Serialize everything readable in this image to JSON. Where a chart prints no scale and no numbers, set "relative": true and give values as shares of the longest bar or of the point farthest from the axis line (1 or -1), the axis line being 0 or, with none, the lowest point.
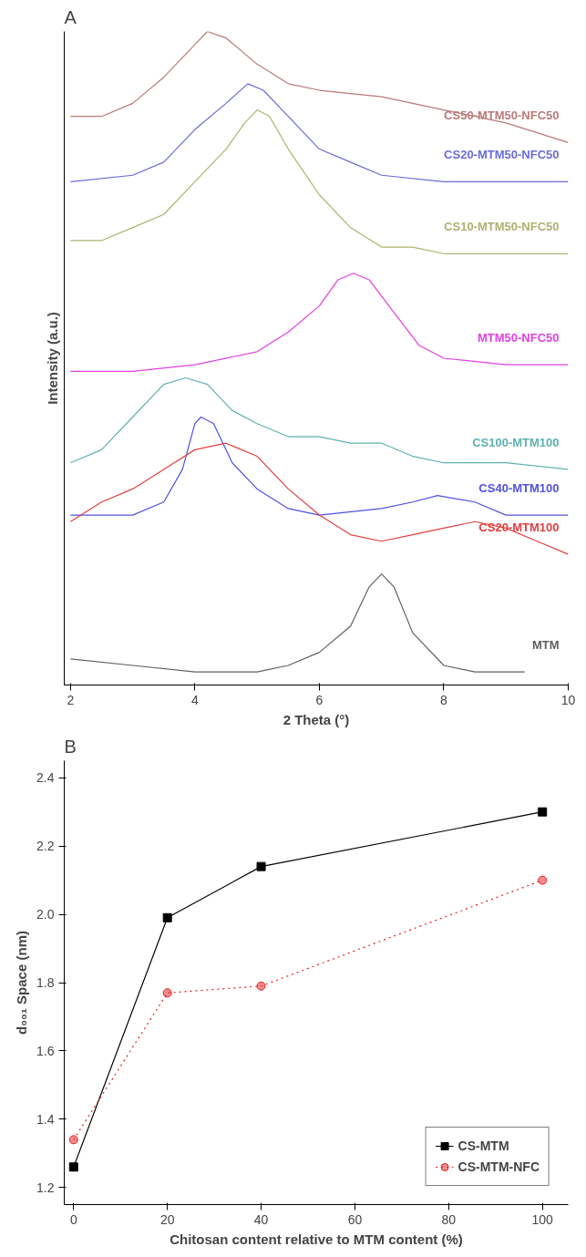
{
  "chart_data": [
    {
      "type": "line",
      "title": "A",
      "xlabel": "2 Theta (°)",
      "ylabel": "Intensity (a.u.)",
      "relative": true,
      "xlim": [
        1.9,
        10
      ],
      "xticks": [
        2,
        4,
        6,
        8,
        10
      ],
      "tick_labels": "x",
      "legend": false,
      "grid": false,
      "marker": "none",
      "series": [
        {
          "name": "CS50-MTM50-NFC50",
          "color": "#b87a7a",
          "x": [
            2,
            2.5,
            3,
            3.5,
            4,
            4.2,
            4.5,
            5,
            5.5,
            6,
            7,
            8,
            9,
            10
          ],
          "values": [
            0.87,
            0.87,
            0.89,
            0.93,
            0.98,
            1.0,
            0.99,
            0.95,
            0.92,
            0.91,
            0.9,
            0.88,
            0.86,
            0.83
          ]
        },
        {
          "name": "CS20-MTM50-NFC50",
          "color": "#6a6ad8",
          "x": [
            2,
            3,
            3.5,
            4,
            4.5,
            4.85,
            5.1,
            5.5,
            6,
            6.5,
            7,
            8,
            9,
            10
          ],
          "values": [
            0.77,
            0.78,
            0.8,
            0.85,
            0.89,
            0.92,
            0.91,
            0.87,
            0.82,
            0.8,
            0.78,
            0.77,
            0.77,
            0.77
          ]
        },
        {
          "name": "CS10-MTM50-NFC50",
          "color": "#b0b070",
          "x": [
            2,
            2.5,
            3,
            3.5,
            4,
            4.5,
            4.8,
            5.0,
            5.2,
            5.5,
            6,
            6.5,
            7,
            7.5,
            8,
            10
          ],
          "values": [
            0.68,
            0.68,
            0.7,
            0.72,
            0.77,
            0.82,
            0.86,
            0.88,
            0.87,
            0.82,
            0.75,
            0.7,
            0.67,
            0.67,
            0.66,
            0.66
          ]
        },
        {
          "name": "MTM50-NFC50",
          "color": "#e040e0",
          "x": [
            2,
            3,
            4,
            5,
            5.5,
            6,
            6.3,
            6.55,
            6.8,
            7.2,
            7.6,
            8,
            9,
            10
          ],
          "values": [
            0.48,
            0.48,
            0.49,
            0.51,
            0.54,
            0.58,
            0.62,
            0.63,
            0.62,
            0.57,
            0.52,
            0.5,
            0.49,
            0.49
          ]
        },
        {
          "name": "CS100-MTM100",
          "color": "#60b0b0",
          "x": [
            2,
            2.5,
            3,
            3.5,
            3.85,
            4.2,
            4.6,
            5,
            5.5,
            6,
            6.5,
            7,
            7.5,
            8,
            9,
            10
          ],
          "values": [
            0.34,
            0.36,
            0.41,
            0.46,
            0.47,
            0.46,
            0.42,
            0.4,
            0.38,
            0.38,
            0.37,
            0.37,
            0.35,
            0.34,
            0.34,
            0.33
          ]
        },
        {
          "name": "CS40-MTM100",
          "color": "#5050e0",
          "x": [
            2,
            3,
            3.5,
            3.8,
            4.0,
            4.1,
            4.3,
            4.6,
            5,
            5.5,
            6,
            7,
            7.5,
            7.9,
            8.5,
            9,
            10
          ],
          "values": [
            0.26,
            0.26,
            0.28,
            0.33,
            0.4,
            0.41,
            0.4,
            0.34,
            0.3,
            0.27,
            0.26,
            0.27,
            0.28,
            0.29,
            0.28,
            0.26,
            0.26
          ]
        },
        {
          "name": "CS20-MTM100",
          "color": "#e04040",
          "x": [
            2,
            2.5,
            3,
            3.5,
            4,
            4.5,
            5,
            5.5,
            6,
            6.5,
            7,
            7.5,
            8,
            8.5,
            9,
            9.5,
            10
          ],
          "values": [
            0.25,
            0.28,
            0.3,
            0.33,
            0.36,
            0.37,
            0.35,
            0.3,
            0.26,
            0.23,
            0.22,
            0.23,
            0.24,
            0.25,
            0.24,
            0.22,
            0.2
          ]
        },
        {
          "name": "MTM",
          "color": "#606060",
          "x": [
            2,
            3,
            4,
            5,
            5.5,
            6,
            6.5,
            6.8,
            7.0,
            7.2,
            7.5,
            8,
            8.5,
            9,
            9.3
          ],
          "values": [
            0.04,
            0.03,
            0.02,
            0.02,
            0.03,
            0.05,
            0.09,
            0.15,
            0.17,
            0.15,
            0.08,
            0.03,
            0.02,
            0.02,
            0.02
          ]
        }
      ]
    },
    {
      "type": "line",
      "title": "B",
      "xlabel": "Chitosan content relative to MTM content (%)",
      "ylabel": "d₀₀₁ Space (nm)",
      "xlim": [
        -2,
        105.5
      ],
      "xticks": [
        0,
        20,
        40,
        60,
        80,
        100
      ],
      "ylim": [
        1.15,
        2.45
      ],
      "yticks": [
        {
          "value": 1.2,
          "label": "1.2"
        },
        {
          "value": 1.4,
          "label": "1.4"
        },
        {
          "value": 1.6,
          "label": "1.6"
        },
        {
          "value": 1.8,
          "label": "1.8"
        },
        {
          "value": 2.0,
          "label": "2.0"
        },
        {
          "value": 2.2,
          "label": "2.2"
        },
        {
          "value": 2.4,
          "label": "2.4"
        }
      ],
      "legend": "bottom right",
      "grid": false,
      "x": [
        0,
        20,
        40,
        100
      ],
      "series": [
        {
          "name": "CS-MTM",
          "color": "#000000",
          "marker": "square",
          "line_style": "solid",
          "values": [
            1.26,
            1.99,
            2.14,
            2.3
          ]
        },
        {
          "name": "CS-MTM-NFC",
          "color": "#e02020",
          "marker": "circle",
          "line_style": "dotted",
          "values": [
            1.34,
            1.77,
            1.79,
            2.1
          ]
        }
      ]
    }
  ]
}
